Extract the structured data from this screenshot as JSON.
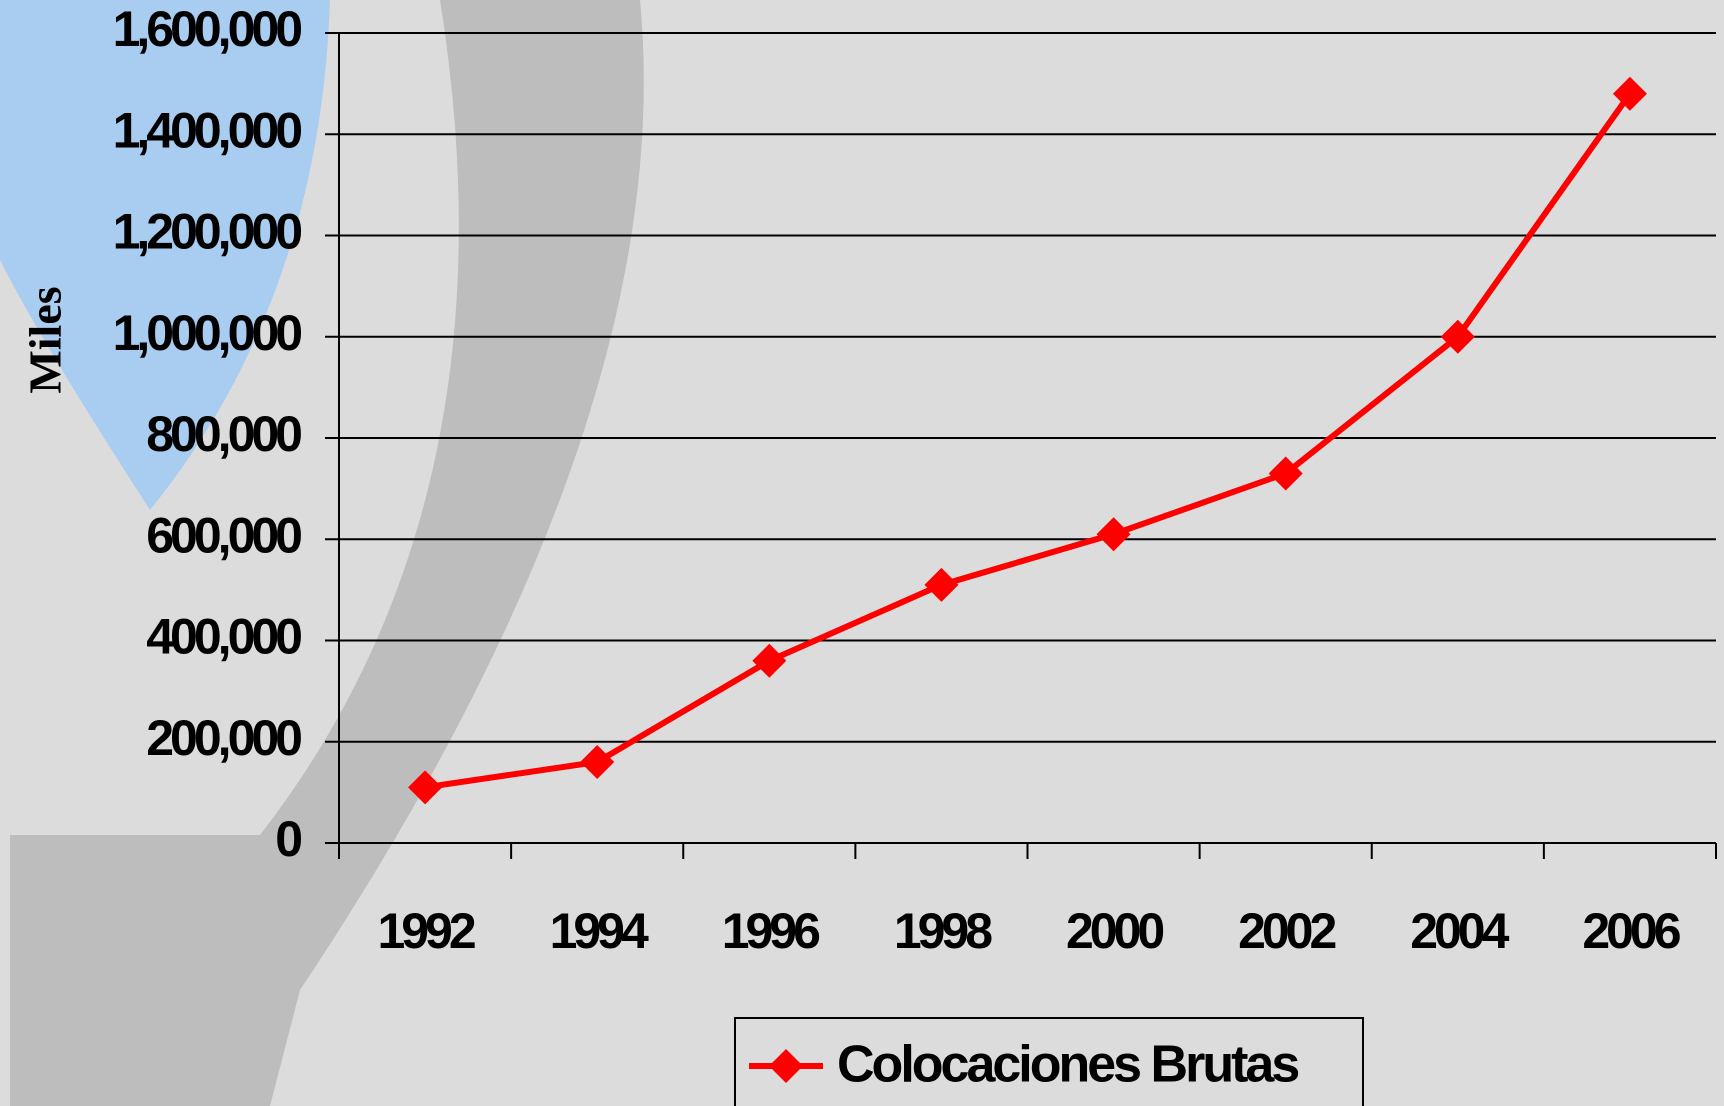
{
  "chart_data": {
    "type": "line",
    "y_label": "Miles",
    "categories": [
      "1992",
      "1994",
      "1996",
      "1998",
      "2000",
      "2002",
      "2004",
      "2006"
    ],
    "series": [
      {
        "name": "Colocaciones Brutas",
        "color": "#ff0000",
        "values": [
          110000,
          160000,
          360000,
          510000,
          610000,
          730000,
          1000000,
          1480000
        ]
      }
    ],
    "ylim": [
      0,
      1600000
    ],
    "yticks": [
      0,
      {
        "value": 200000,
        "label": "200,000"
      },
      {
        "value": 400000,
        "label": "400,000"
      },
      {
        "value": 600000,
        "label": "600,000"
      },
      {
        "value": 800000,
        "label": "800,000"
      },
      {
        "value": 1000000,
        "label": "1,000,000"
      },
      {
        "value": 1200000,
        "label": "1,200,000"
      },
      {
        "value": 1400000,
        "label": "1,400,000"
      },
      {
        "value": 1600000,
        "label": "1,600,000"
      }
    ],
    "grid": true,
    "legend": "bottom"
  }
}
